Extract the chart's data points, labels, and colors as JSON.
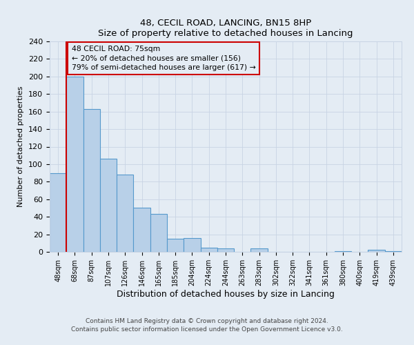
{
  "title": "48, CECIL ROAD, LANCING, BN15 8HP",
  "subtitle": "Size of property relative to detached houses in Lancing",
  "xlabel": "Distribution of detached houses by size in Lancing",
  "ylabel": "Number of detached properties",
  "bar_labels": [
    "48sqm",
    "68sqm",
    "87sqm",
    "107sqm",
    "126sqm",
    "146sqm",
    "165sqm",
    "185sqm",
    "204sqm",
    "224sqm",
    "244sqm",
    "263sqm",
    "283sqm",
    "302sqm",
    "322sqm",
    "341sqm",
    "361sqm",
    "380sqm",
    "400sqm",
    "419sqm",
    "439sqm"
  ],
  "bar_heights": [
    90,
    200,
    163,
    106,
    88,
    50,
    43,
    15,
    16,
    5,
    4,
    0,
    4,
    0,
    0,
    0,
    0,
    1,
    0,
    2,
    1
  ],
  "bar_color": "#b8d0e8",
  "bar_edge_color": "#5599cc",
  "grid_color": "#c8d4e4",
  "background_color": "#e4ecf4",
  "vline_color": "#cc0000",
  "annotation_title": "48 CECIL ROAD: 75sqm",
  "annotation_line1": "← 20% of detached houses are smaller (156)",
  "annotation_line2": "79% of semi-detached houses are larger (617) →",
  "annotation_box_edge": "#cc0000",
  "ylim": [
    0,
    240
  ],
  "yticks": [
    0,
    20,
    40,
    60,
    80,
    100,
    120,
    140,
    160,
    180,
    200,
    220,
    240
  ],
  "footer1": "Contains HM Land Registry data © Crown copyright and database right 2024.",
  "footer2": "Contains public sector information licensed under the Open Government Licence v3.0."
}
